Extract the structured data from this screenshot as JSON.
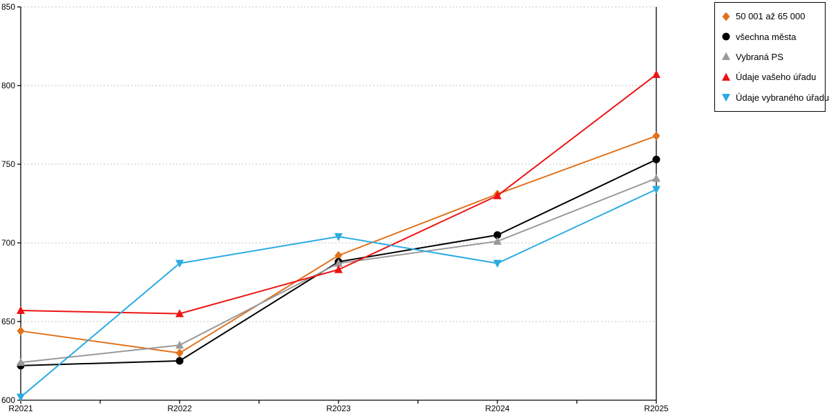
{
  "chart_data": {
    "type": "line",
    "title": "",
    "xlabel": "",
    "ylabel": "",
    "categories": [
      "R2021",
      "R2022",
      "R2023",
      "R2024",
      "R2025"
    ],
    "series": [
      {
        "name": "50 001 až 65 000",
        "color": "#E0711C",
        "marker": "diamond",
        "values": [
          644,
          630,
          692,
          731,
          768
        ]
      },
      {
        "name": "všechna města",
        "color": "#000000",
        "marker": "circle",
        "values": [
          622,
          625,
          688,
          705,
          753
        ]
      },
      {
        "name": "Vybraná PS",
        "color": "#999999",
        "marker": "triangle-up",
        "values": [
          624,
          635,
          687,
          701,
          741
        ]
      },
      {
        "name": "Údaje vašeho úřadu",
        "color": "#EE1111",
        "marker": "triangle-up",
        "values": [
          657,
          655,
          683,
          730,
          807
        ]
      },
      {
        "name": "Údaje vybraného úřadu",
        "color": "#29ABE2",
        "marker": "triangle-down",
        "values": [
          602,
          687,
          704,
          687,
          734
        ]
      }
    ],
    "ylim": [
      600,
      850
    ],
    "yticks": [
      600,
      650,
      700,
      750,
      800,
      850
    ],
    "grid": "horizontal-dotted",
    "grid_color": "#BFBFBF",
    "axis_color": "#000000",
    "legend_position": "top-right"
  }
}
